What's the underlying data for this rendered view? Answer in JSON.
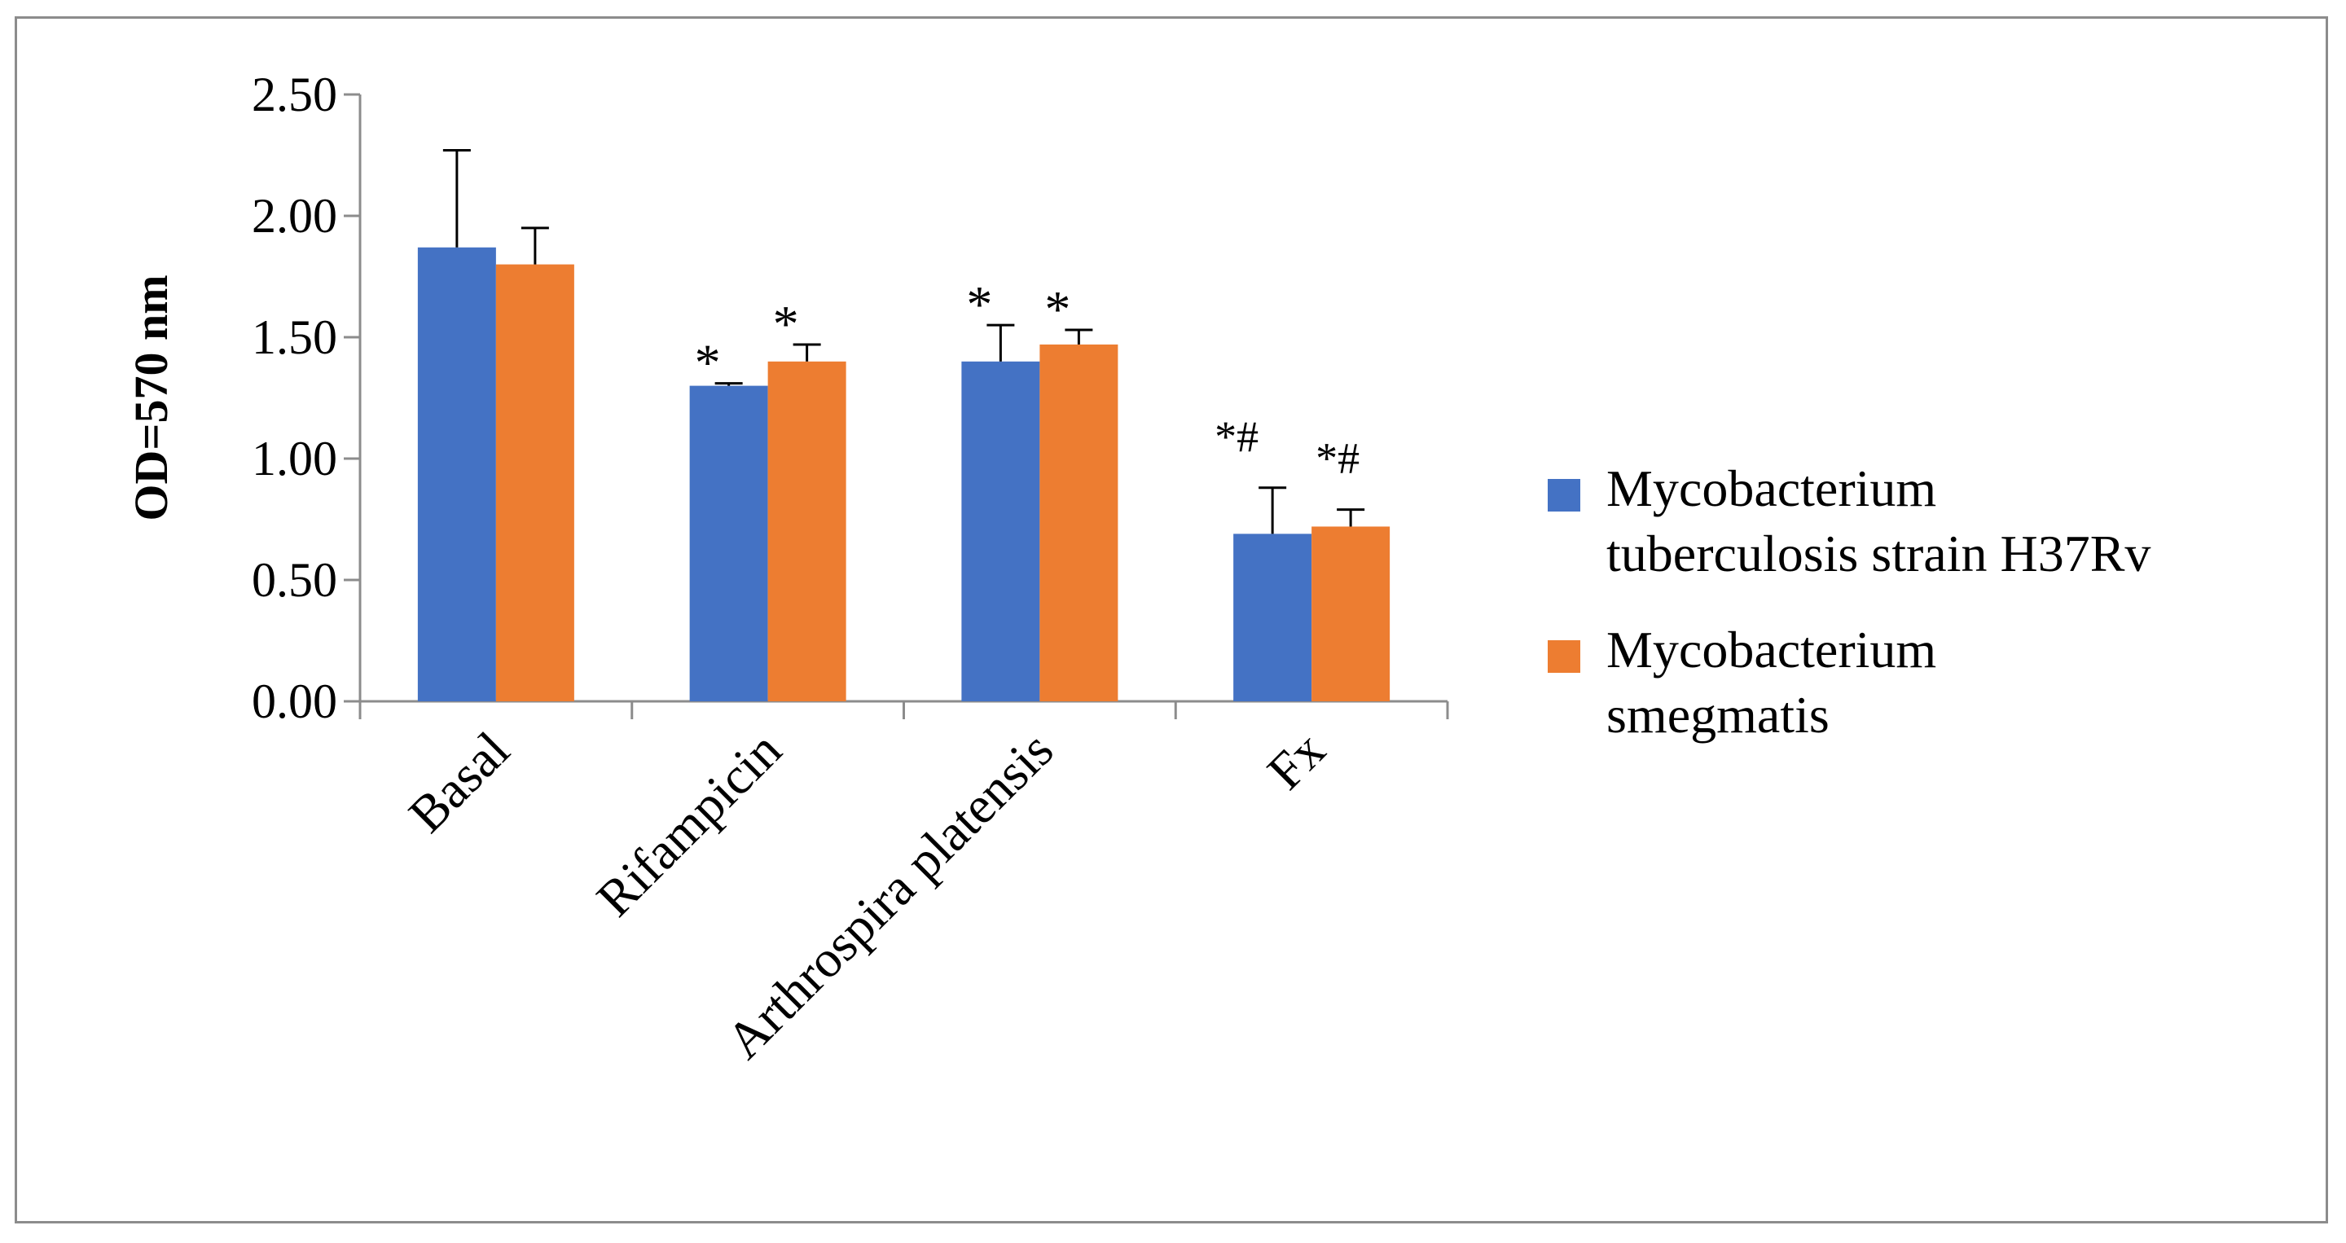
{
  "chart_data": {
    "type": "bar",
    "ylabel": "OD=570 nm",
    "xlabel": "",
    "ylim": [
      0,
      2.5
    ],
    "yticks": [
      "0.00",
      "0.50",
      "1.00",
      "1.50",
      "2.00",
      "2.50"
    ],
    "grid": false,
    "legend_position": "right",
    "categories": [
      "Basal",
      "Rifampicin",
      "Arthrospira platensis",
      "Fx"
    ],
    "series": [
      {
        "name": "Mycobacterium tuberculosis strain H37Rv",
        "color": "#4472c4",
        "values": [
          1.87,
          1.3,
          1.4,
          0.69
        ],
        "errors": [
          0.4,
          0.01,
          0.15,
          0.19
        ],
        "annotations": [
          "",
          "*",
          "*",
          "*#"
        ]
      },
      {
        "name": "Mycobacterium smegmatis",
        "color": "#ed7d31",
        "values": [
          1.8,
          1.4,
          1.47,
          0.72
        ],
        "errors": [
          0.15,
          0.07,
          0.06,
          0.07
        ],
        "annotations": [
          "",
          "*",
          "*",
          "*#"
        ]
      }
    ]
  },
  "legend": {
    "items": [
      {
        "line1": "Mycobacterium",
        "line2": "tuberculosis strain H37Rv"
      },
      {
        "line1": "Mycobacterium",
        "line2": "smegmatis"
      }
    ]
  }
}
